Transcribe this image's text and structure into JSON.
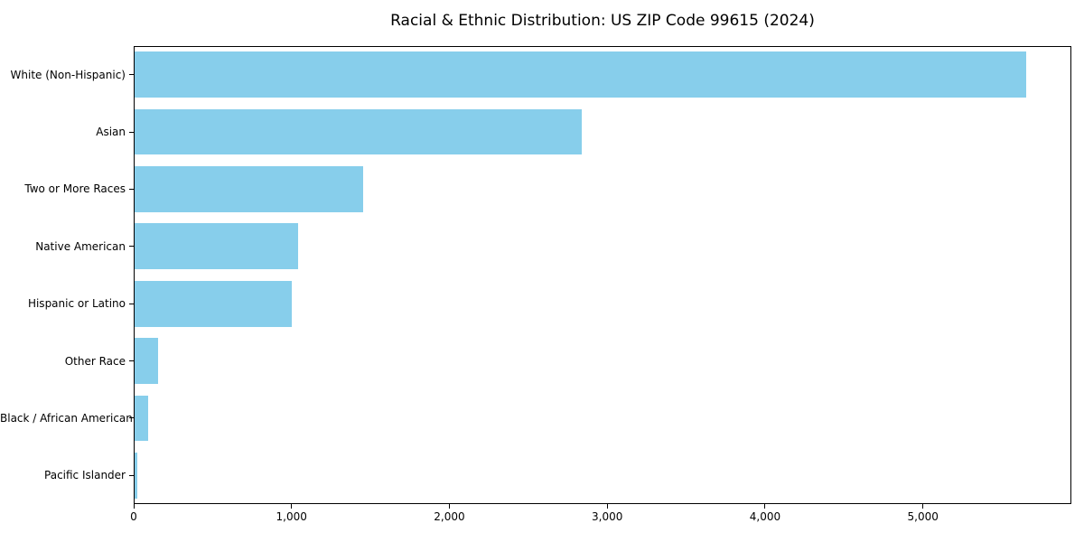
{
  "figure": {
    "background": "#ffffff",
    "bar_color": "#87CEEB",
    "axis_color": "#000000",
    "text_color": "#000000"
  },
  "chart_data": {
    "type": "bar",
    "orientation": "horizontal",
    "title": "Racial & Ethnic Distribution: US ZIP Code 99615 (2024)",
    "categories": [
      "White (Non-Hispanic)",
      "Asian",
      "Two or More Races",
      "Native American",
      "Hispanic or Latino",
      "Other Race",
      "Black / African American",
      "Pacific Islander"
    ],
    "values": [
      5650,
      2830,
      1450,
      1035,
      995,
      150,
      85,
      20
    ],
    "xlabel": "",
    "ylabel": "",
    "xlim": [
      0,
      5940
    ],
    "x_ticks": [
      0,
      1000,
      2000,
      3000,
      4000,
      5000
    ],
    "x_tick_labels": [
      "0",
      "1,000",
      "2,000",
      "3,000",
      "4,000",
      "5,000"
    ],
    "grid": false,
    "legend": null,
    "bar_relative_height": 0.8
  }
}
